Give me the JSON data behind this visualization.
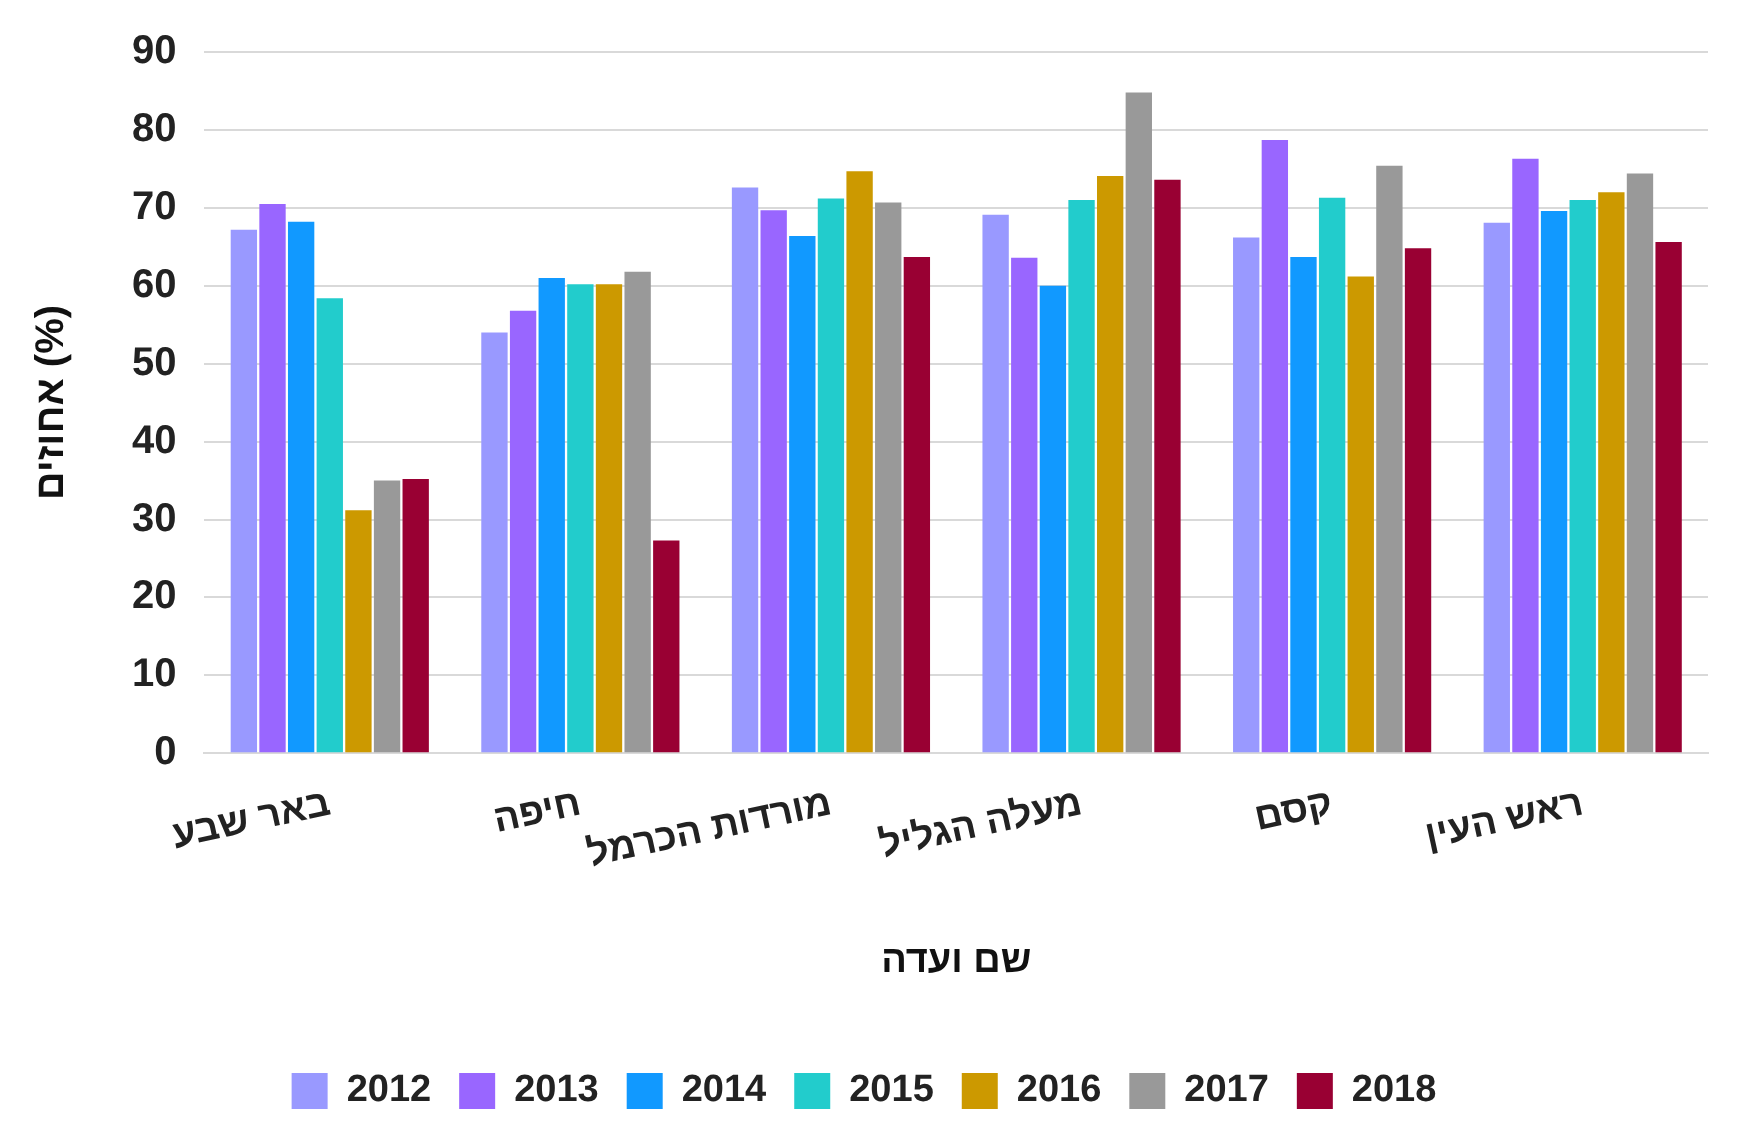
{
  "chart_data": {
    "type": "bar",
    "xlabel": "שם ועדה",
    "ylabel": "אחוזים (%)",
    "categories": [
      "באר שבע",
      "חיפה",
      "מורדות הכרמל",
      "מעלה הגליל",
      "קסם",
      "ראש העין"
    ],
    "series": [
      {
        "name": "2012",
        "color": "#9999ff",
        "values": [
          67.2,
          54,
          72.6,
          69.1,
          66.2,
          68.1
        ]
      },
      {
        "name": "2013",
        "color": "#9966ff",
        "values": [
          70.5,
          56.8,
          69.7,
          63.6,
          78.7,
          76.3
        ]
      },
      {
        "name": "2014",
        "color": "#1199ff",
        "values": [
          68.2,
          61,
          66.4,
          60,
          63.7,
          69.6
        ]
      },
      {
        "name": "2015",
        "color": "#22cccc",
        "values": [
          58.4,
          60.2,
          71.2,
          71,
          71.3,
          71
        ]
      },
      {
        "name": "2016",
        "color": "#cc9900",
        "values": [
          31.2,
          60.2,
          74.7,
          74.1,
          61.2,
          72
        ]
      },
      {
        "name": "2017",
        "color": "#999999",
        "values": [
          35,
          61.8,
          70.7,
          84.8,
          75.4,
          74.4
        ]
      },
      {
        "name": "2018",
        "color": "#990033",
        "values": [
          35.2,
          27.3,
          63.7,
          73.6,
          64.8,
          65.6
        ]
      }
    ],
    "ylim": [
      0,
      90
    ],
    "yticks": [
      0,
      10,
      20,
      30,
      40,
      50,
      60,
      70,
      80,
      90
    ],
    "grid": "y",
    "legend": "bottom"
  }
}
